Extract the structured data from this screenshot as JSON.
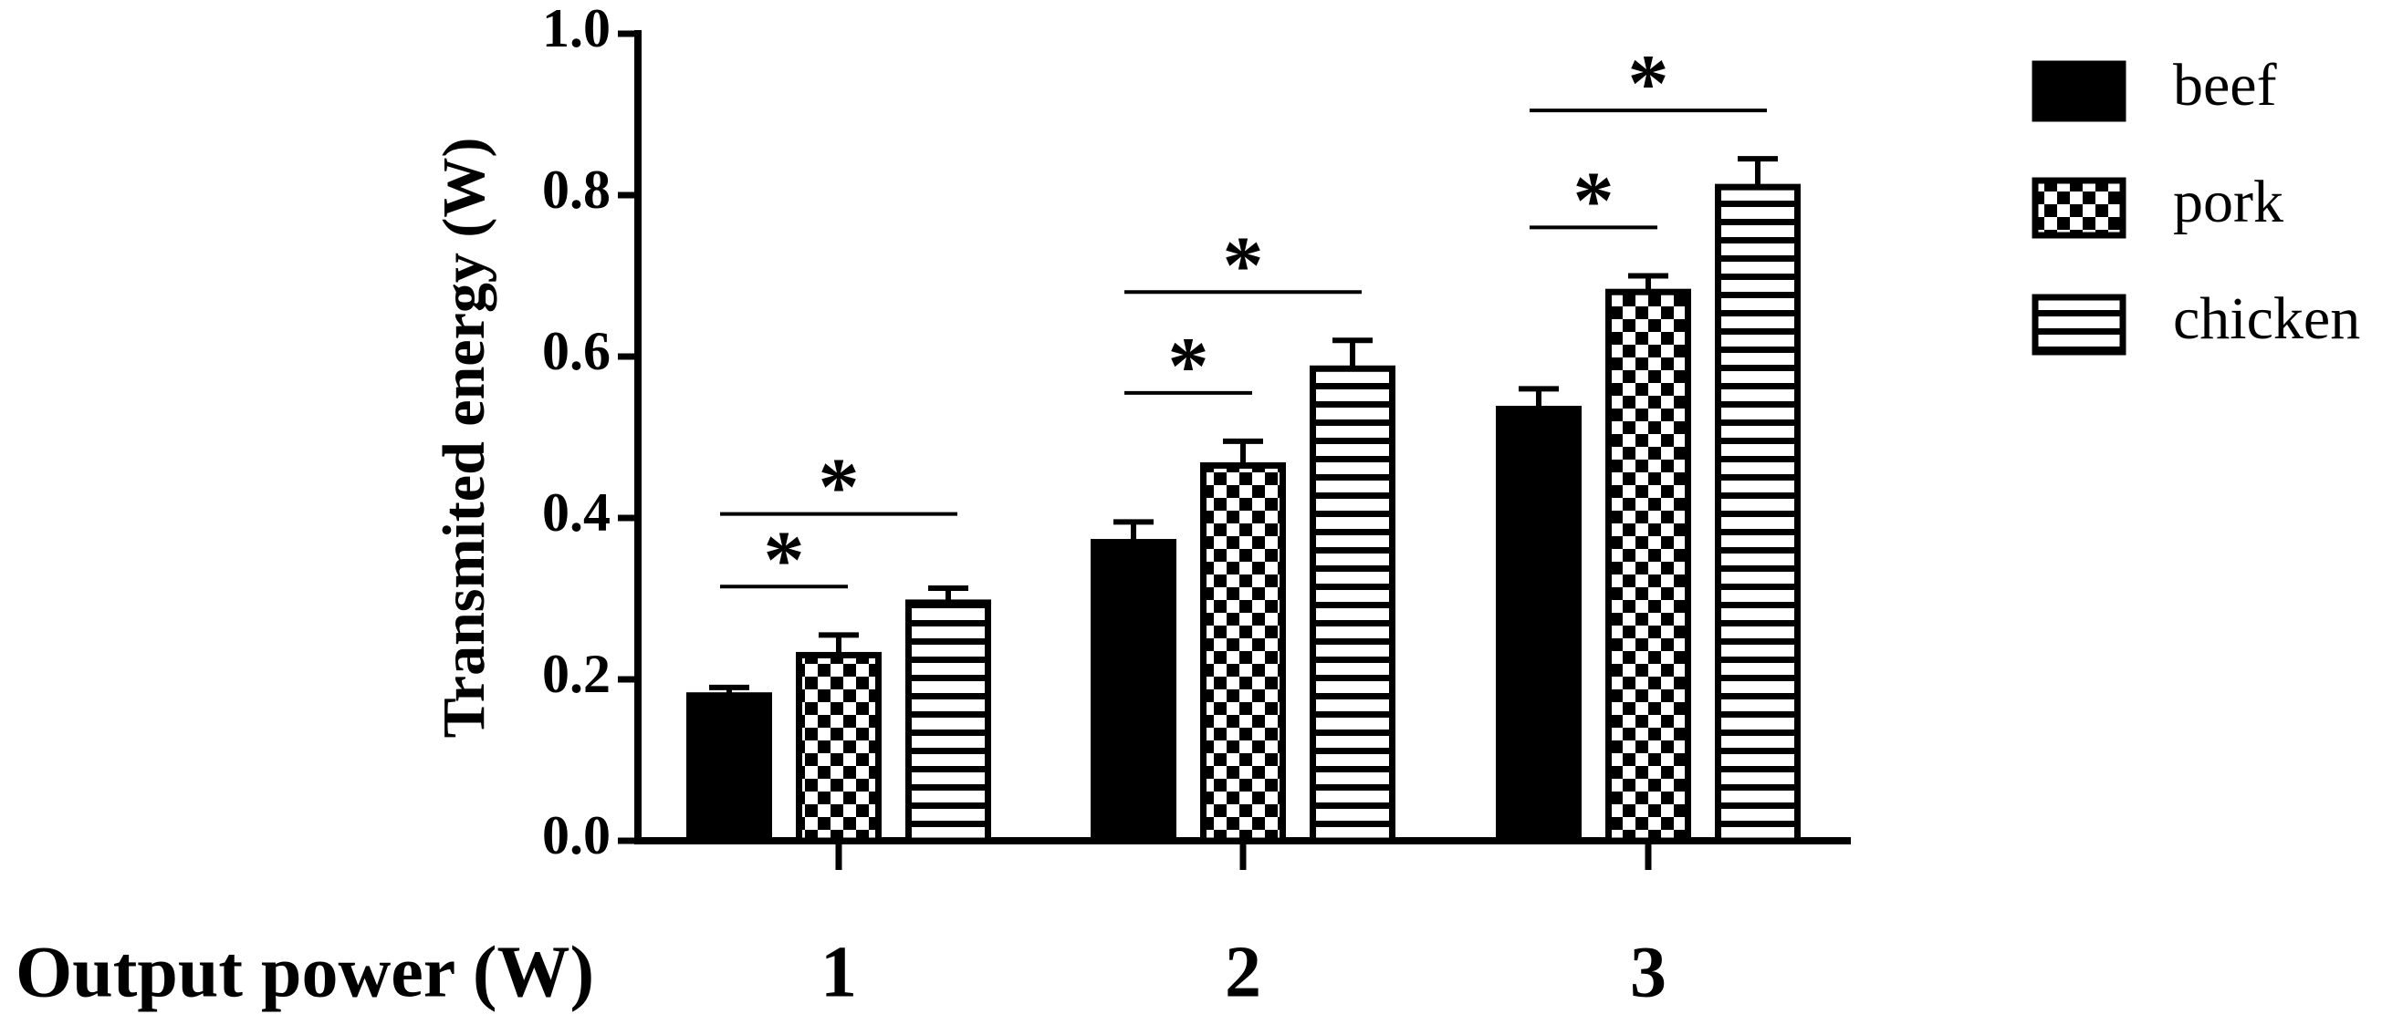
{
  "chart_data": {
    "type": "bar",
    "x_label": "Output power (W)",
    "y_label": "Transmited energy (W)",
    "categories": [
      "1",
      "2",
      "3"
    ],
    "series": [
      {
        "name": "beef",
        "color": "#000000",
        "pattern": "solid",
        "values": [
          0.18,
          0.37,
          0.535
        ],
        "errors": [
          0.01,
          0.025,
          0.025
        ]
      },
      {
        "name": "pork",
        "color": "#000000",
        "pattern": "checker",
        "values": [
          0.23,
          0.465,
          0.68
        ],
        "errors": [
          0.025,
          0.03,
          0.02
        ]
      },
      {
        "name": "chicken",
        "color": "#000000",
        "pattern": "hstripe",
        "values": [
          0.295,
          0.585,
          0.81
        ],
        "errors": [
          0.018,
          0.035,
          0.035
        ]
      }
    ],
    "significance_marks": [
      "*",
      "*",
      "*",
      "*",
      "*",
      "*"
    ],
    "ylim": [
      0,
      1
    ],
    "yticks": [
      {
        "value": 0,
        "label": "0.0"
      },
      {
        "value": 0.2,
        "label": "0.2"
      },
      {
        "value": 0.4,
        "label": "0.4"
      },
      {
        "value": 0.6,
        "label": "0.6"
      },
      {
        "value": 0.8,
        "label": "0.8"
      },
      {
        "value": 1,
        "label": "1.0"
      }
    ],
    "grid": false,
    "legend": "right"
  }
}
